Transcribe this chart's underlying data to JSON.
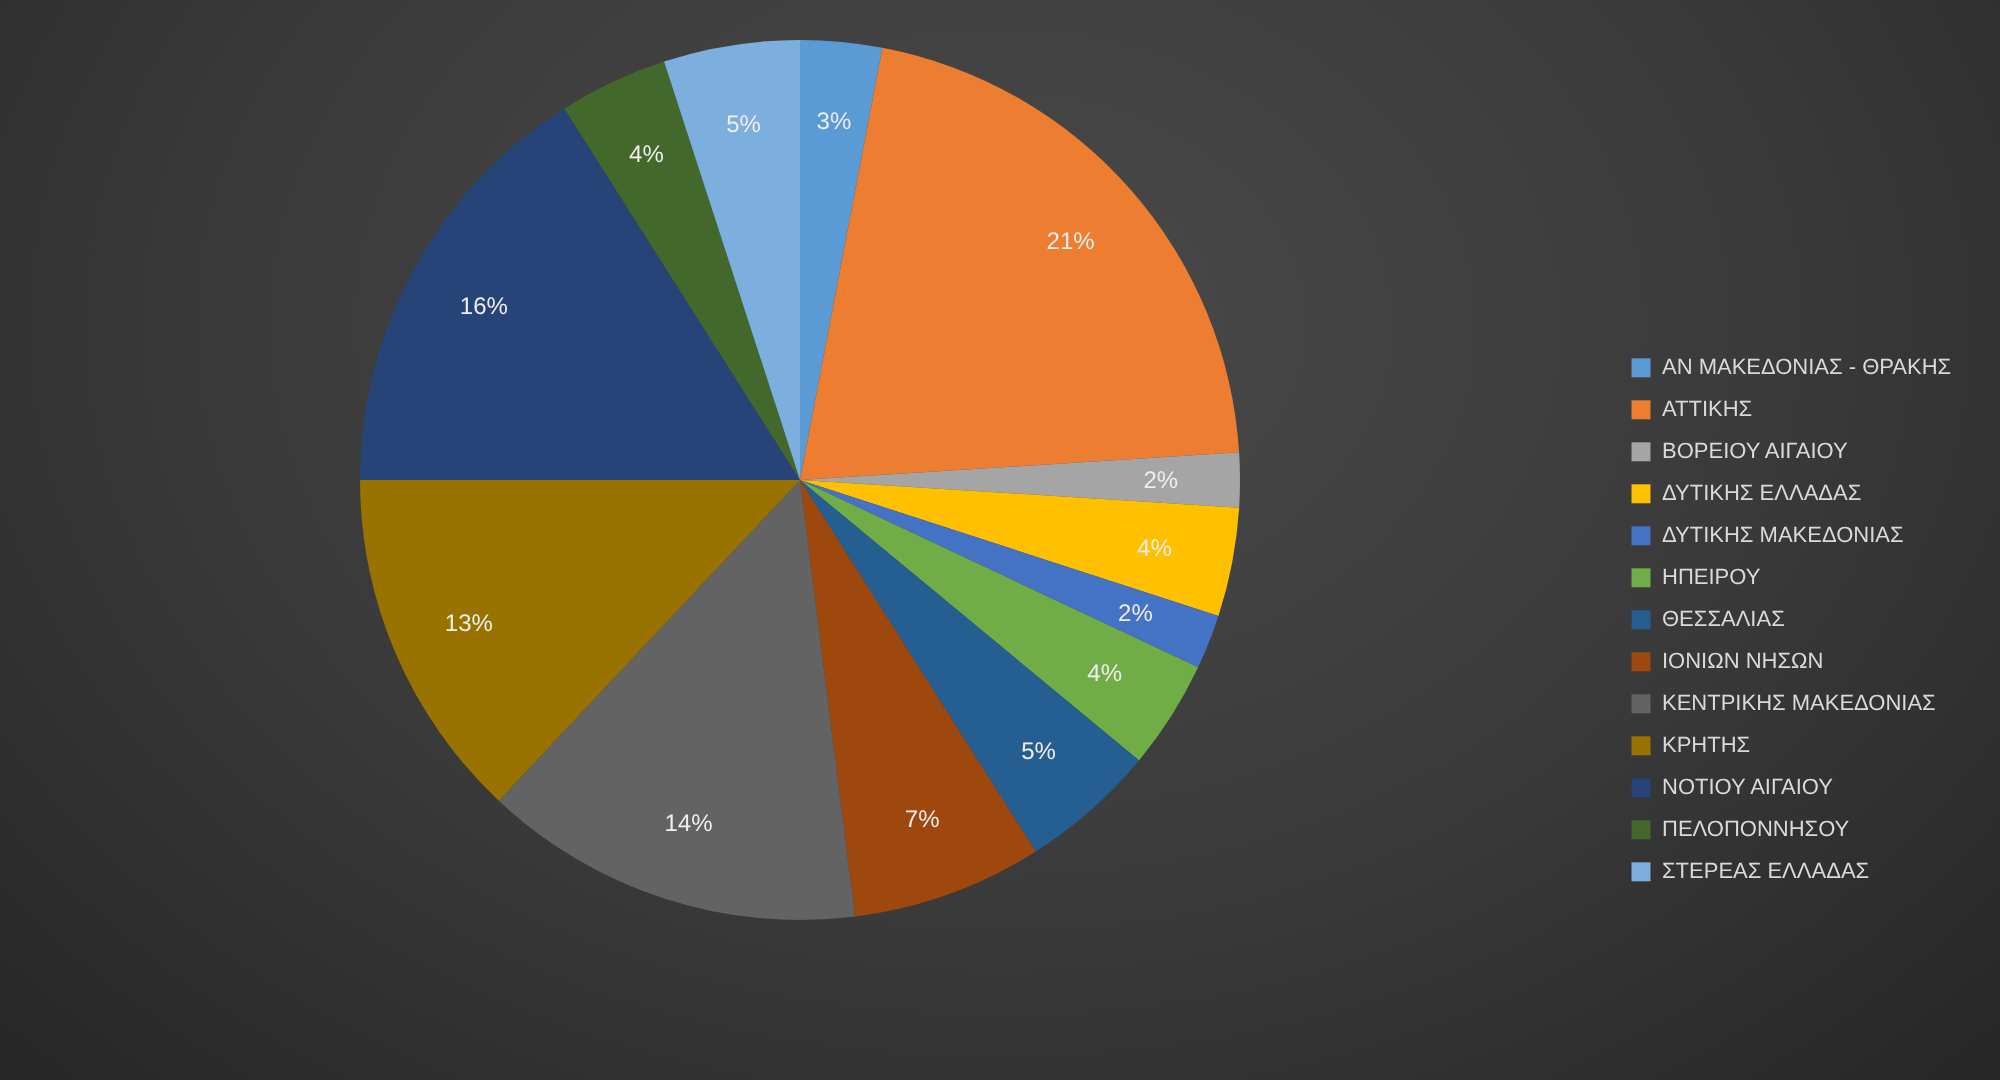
{
  "chart_data": {
    "type": "pie",
    "categories": [
      "ΑΝ ΜΑΚΕΔΟΝΙΑΣ - ΘΡΑΚΗΣ",
      "ΑΤΤΙΚΗΣ",
      "ΒΟΡΕΙΟΥ ΑΙΓΑΙΟΥ",
      "ΔΥΤΙΚΗΣ ΕΛΛΑΔΑΣ",
      "ΔΥΤΙΚΗΣ ΜΑΚΕΔΟΝΙΑΣ",
      "ΗΠΕΙΡΟΥ",
      "ΘΕΣΣΑΛΙΑΣ",
      "ΙΟΝΙΩΝ ΝΗΣΩΝ",
      "ΚΕΝΤΡΙΚΗΣ ΜΑΚΕΔΟΝΙΑΣ",
      "ΚΡΗΤΗΣ",
      "ΝΟΤΙΟΥ ΑΙΓΑΙΟΥ",
      "ΠΕΛΟΠΟΝΝΗΣΟΥ",
      "ΣΤΕΡΕΑΣ ΕΛΛΑΔΑΣ"
    ],
    "values": [
      3,
      21,
      2,
      4,
      2,
      4,
      5,
      7,
      14,
      13,
      16,
      4,
      5
    ],
    "value_labels": [
      "3%",
      "21%",
      "2%",
      "4%",
      "2%",
      "4%",
      "5%",
      "7%",
      "14%",
      "13%",
      "16%",
      "4%",
      "5%"
    ],
    "colors": [
      "#5b9bd5",
      "#ed7d31",
      "#a5a5a5",
      "#ffc000",
      "#4472c4",
      "#70ad47",
      "#255e91",
      "#9e480e",
      "#636363",
      "#997300",
      "#264478",
      "#43682b",
      "#7cafdd"
    ],
    "legend": "right"
  }
}
